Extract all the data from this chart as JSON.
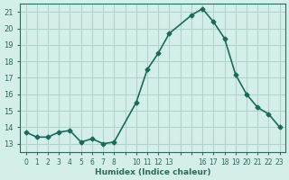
{
  "x": [
    0,
    1,
    2,
    3,
    4,
    5,
    6,
    7,
    8,
    10,
    11,
    12,
    13,
    15,
    16,
    17,
    18,
    19,
    20,
    21,
    22,
    23
  ],
  "y": [
    13.7,
    13.4,
    13.4,
    13.7,
    13.8,
    13.1,
    13.3,
    13.0,
    13.1,
    15.5,
    17.5,
    18.5,
    19.7,
    20.8,
    21.2,
    20.4,
    19.4,
    17.2,
    16.0,
    15.2,
    14.8,
    14.0
  ],
  "line_color": "#1a6b5a",
  "marker_color": "#1a6b5a",
  "bg_color": "#d4eeea",
  "grid_color": "#b0d4cc",
  "axis_color": "#2a6b5a",
  "xlabel": "Humidex (Indice chaleur)",
  "xlim": [
    -0.5,
    23.5
  ],
  "ylim": [
    12.5,
    21.5
  ],
  "yticks": [
    13,
    14,
    15,
    16,
    17,
    18,
    19,
    20,
    21
  ],
  "xtick_labels": [
    "0",
    "1",
    "2",
    "3",
    "4",
    "5",
    "6",
    "7",
    "8",
    "",
    "10",
    "11",
    "12",
    "13",
    "",
    "",
    "16",
    "17",
    "18",
    "19",
    "20",
    "21",
    "22",
    "23"
  ],
  "xtick_positions": [
    0,
    1,
    2,
    3,
    4,
    5,
    6,
    7,
    8,
    9,
    10,
    11,
    12,
    13,
    14,
    15,
    16,
    17,
    18,
    19,
    20,
    21,
    22,
    23
  ]
}
